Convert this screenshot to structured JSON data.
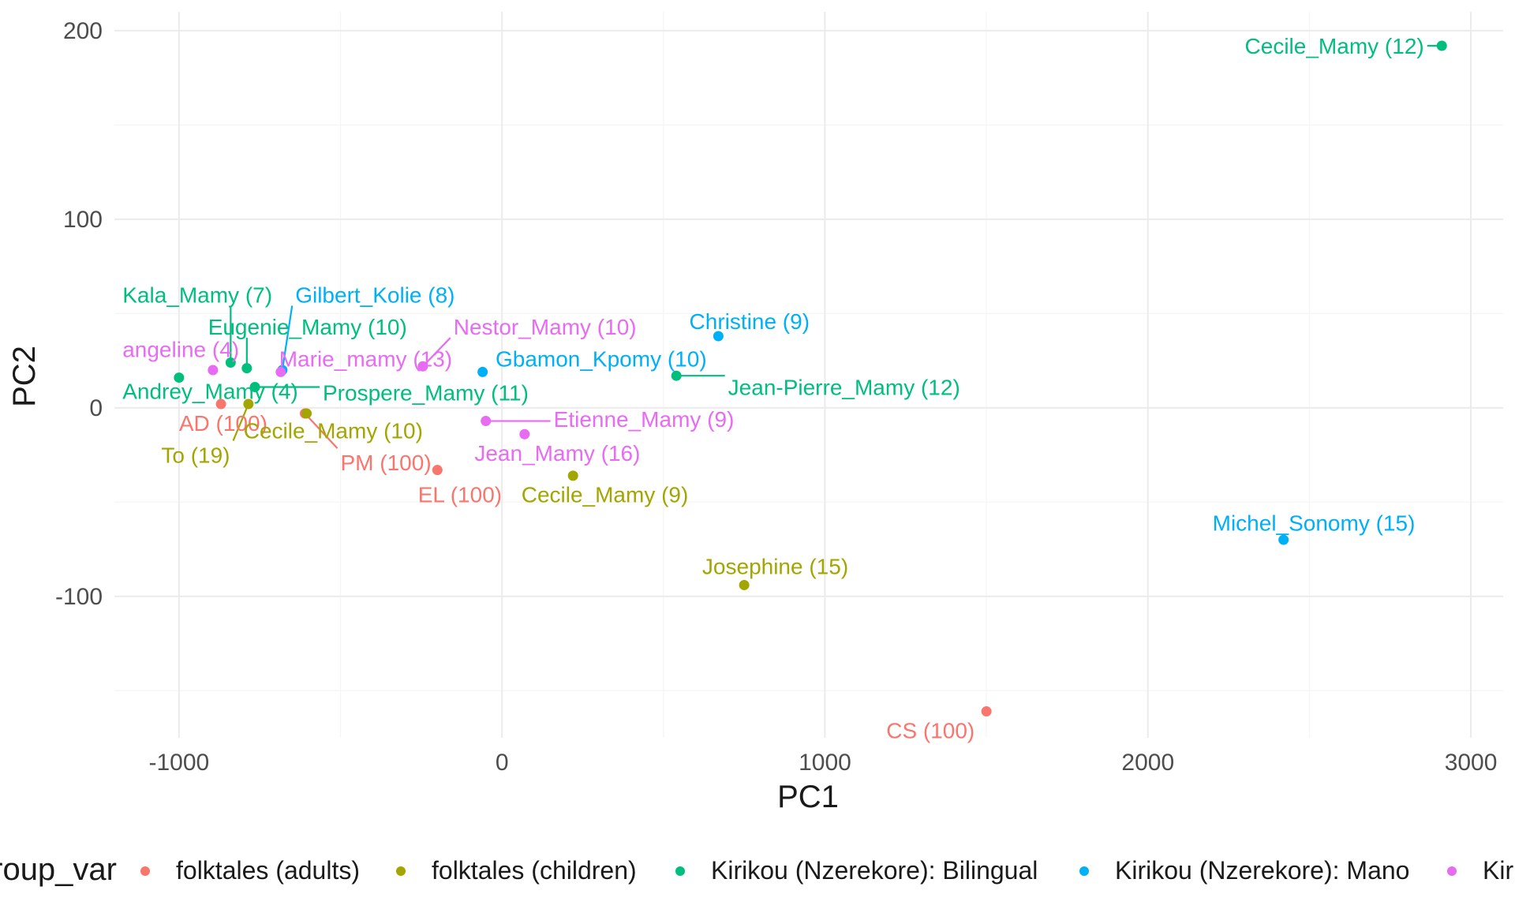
{
  "chart_data": {
    "type": "scatter",
    "xlabel": "PC1",
    "ylabel": "PC2",
    "xlim": [
      -1200,
      3100
    ],
    "ylim": [
      -175,
      210
    ],
    "x_ticks": [
      -1000,
      0,
      1000,
      2000,
      3000
    ],
    "x_tick_labels": [
      "-1000",
      "0",
      "1000",
      "2000",
      "3000"
    ],
    "y_ticks": [
      -100,
      0,
      100,
      200
    ],
    "y_tick_labels": [
      "-100",
      "0",
      "100",
      "200"
    ],
    "grid": true,
    "legend": {
      "title": "group_var",
      "position": "bottom",
      "items": [
        {
          "label": "folktales (adults)",
          "color": "#F8766D"
        },
        {
          "label": "folktales (children)",
          "color": "#A3A500"
        },
        {
          "label": "Kirikou (Nzerekore): Bilingual",
          "color": "#00BF7D"
        },
        {
          "label": "Kirikou (Nzerekore): Mano",
          "color": "#00B0F6"
        },
        {
          "label": "Kirikou (Nzerekore): Mama",
          "color": "#E76BF3"
        }
      ]
    },
    "series": [
      {
        "group": 0,
        "points": [
          {
            "label": "AD (100)",
            "x": -870,
            "y": 2,
            "lx": -1000,
            "ly": -8,
            "anchor": "start"
          },
          {
            "label": "PM (100)",
            "x": -610,
            "y": -3,
            "lx": -500,
            "ly": -29,
            "anchor": "start"
          },
          {
            "label": "EL (100)",
            "x": -200,
            "y": -33,
            "lx": -260,
            "ly": -46,
            "anchor": "start"
          },
          {
            "label": "CS (100)",
            "x": 1500,
            "y": -161,
            "lx": 1190,
            "ly": -171,
            "anchor": "start"
          }
        ]
      },
      {
        "group": 1,
        "points": [
          {
            "label": "To (19)",
            "x": -785,
            "y": 2,
            "lx": -1055,
            "ly": -25,
            "anchor": "start"
          },
          {
            "label": "Cecile_Mamy (10)",
            "x": -605,
            "y": -3,
            "lx": -800,
            "ly": -12,
            "anchor": "start"
          },
          {
            "label": "Cecile_Mamy (9)",
            "x": 220,
            "y": -36,
            "lx": 60,
            "ly": -46,
            "anchor": "start"
          },
          {
            "label": "Josephine (15)",
            "x": 750,
            "y": -94,
            "lx": 620,
            "ly": -84,
            "anchor": "start"
          }
        ]
      },
      {
        "group": 2,
        "points": [
          {
            "label": "Cecile_Mamy (12)",
            "x": 2910,
            "y": 192,
            "lx": 2300,
            "ly": 192,
            "anchor": "start"
          },
          {
            "label": "Kala_Mamy (7)",
            "x": -840,
            "y": 24,
            "lx": -1175,
            "ly": 60,
            "anchor": "start"
          },
          {
            "label": "Eugenie_Mamy (10)",
            "x": -790,
            "y": 21,
            "lx": -910,
            "ly": 43,
            "anchor": "start"
          },
          {
            "label": "Andrey_Mamy (4)",
            "x": -1000,
            "y": 16,
            "lx": -1175,
            "ly": 9,
            "anchor": "start"
          },
          {
            "label": "Prospere_Mamy (11)",
            "x": -765,
            "y": 11,
            "lx": -555,
            "ly": 8,
            "anchor": "start"
          },
          {
            "label": "Jean-Pierre_Mamy (12)",
            "x": 540,
            "y": 17,
            "lx": 700,
            "ly": 11,
            "anchor": "start"
          }
        ]
      },
      {
        "group": 3,
        "points": [
          {
            "label": "Gilbert_Kolie (8)",
            "x": -680,
            "y": 20,
            "lx": -640,
            "ly": 60,
            "anchor": "start"
          },
          {
            "label": "Gbamon_Kpomy (10)",
            "x": -60,
            "y": 19,
            "lx": -20,
            "ly": 26,
            "anchor": "start"
          },
          {
            "label": "Christine (9)",
            "x": 670,
            "y": 38,
            "lx": 580,
            "ly": 46,
            "anchor": "start"
          },
          {
            "label": "Michel_Sonomy (15)",
            "x": 2420,
            "y": -70,
            "lx": 2200,
            "ly": -61,
            "anchor": "start"
          }
        ]
      },
      {
        "group": 4,
        "points": [
          {
            "label": "angeline (4)",
            "x": -895,
            "y": 20,
            "lx": -1175,
            "ly": 31,
            "anchor": "start"
          },
          {
            "label": "Marie_mamy (13)",
            "x": -685,
            "y": 19,
            "lx": -690,
            "ly": 26,
            "anchor": "start"
          },
          {
            "label": "Nestor_Mamy (10)",
            "x": -245,
            "y": 22,
            "lx": -150,
            "ly": 43,
            "anchor": "start"
          },
          {
            "label": "Etienne_Mamy (9)",
            "x": -50,
            "y": -7,
            "lx": 160,
            "ly": -6,
            "anchor": "start"
          },
          {
            "label": "Jean_Mamy (16)",
            "x": 70,
            "y": -14,
            "lx": -85,
            "ly": -24,
            "anchor": "start"
          }
        ]
      }
    ]
  }
}
